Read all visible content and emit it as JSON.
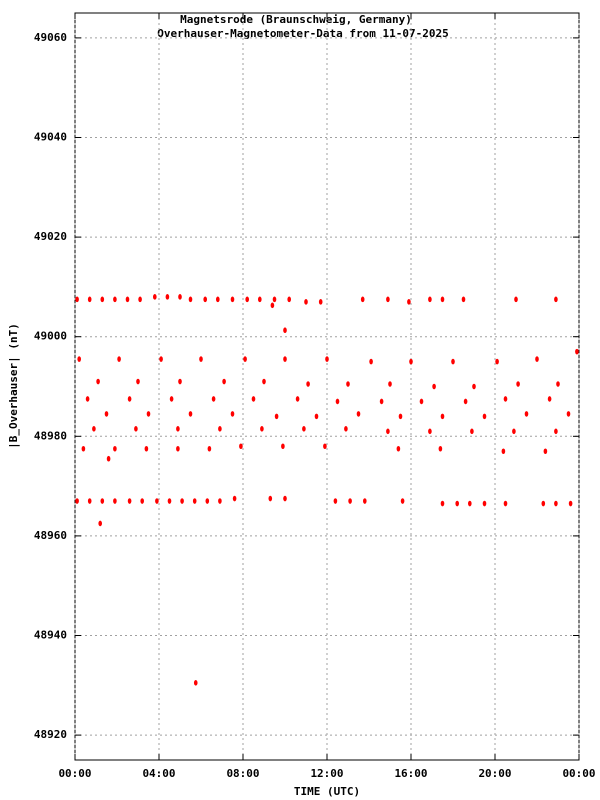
{
  "chart_data": {
    "type": "scatter",
    "title": "Magnetsrode (Braunschweig, Germany)",
    "subtitle": "Overhauser-Magnetometer-Data from 11-07-2025",
    "x_label": "TIME (UTC)",
    "y_label": "|B_Overhauser| (nT)",
    "color": "#ff0000",
    "grid": true,
    "xlim": [
      0,
      24
    ],
    "xticks": [
      {
        "value": 0,
        "label": "00:00"
      },
      {
        "value": 4,
        "label": "04:00"
      },
      {
        "value": 8,
        "label": "08:00"
      },
      {
        "value": 12,
        "label": "12:00"
      },
      {
        "value": 16,
        "label": "16:00"
      },
      {
        "value": 20,
        "label": "20:00"
      },
      {
        "value": 24,
        "label": "00:00"
      }
    ],
    "ylim": [
      48915,
      49065
    ],
    "yticks": [
      48920,
      48940,
      48960,
      48980,
      49000,
      49020,
      49040,
      49060
    ],
    "x": [
      0.1,
      0.7,
      1.3,
      1.9,
      2.5,
      3.1,
      3.8,
      4.4,
      5.0,
      5.5,
      6.2,
      6.8,
      7.5,
      8.2,
      8.8,
      9.5,
      10.2,
      11.0,
      11.7,
      13.7,
      14.9,
      15.9,
      16.9,
      17.5,
      18.5,
      21.0,
      22.9,
      0.1,
      0.7,
      1.3,
      1.9,
      2.6,
      3.2,
      3.9,
      4.5,
      5.1,
      5.7,
      6.3,
      6.9,
      7.6,
      9.3,
      10.0,
      12.4,
      13.1,
      13.8,
      15.6,
      17.5,
      18.2,
      18.8,
      19.5,
      20.5,
      22.3,
      22.9,
      23.6,
      0.2,
      2.1,
      4.1,
      6.0,
      8.1,
      10.0,
      12.0,
      14.1,
      16.0,
      18.0,
      20.1,
      22.0,
      1.1,
      3.0,
      5.0,
      7.1,
      9.0,
      11.1,
      13.0,
      15.0,
      17.1,
      19.0,
      21.1,
      23.0,
      0.6,
      2.6,
      4.6,
      6.6,
      8.5,
      10.6,
      12.5,
      14.6,
      16.5,
      18.6,
      20.5,
      22.6,
      1.5,
      3.5,
      5.5,
      7.5,
      9.6,
      11.5,
      13.5,
      15.5,
      17.5,
      19.5,
      21.5,
      23.5,
      0.9,
      2.9,
      4.9,
      6.9,
      8.9,
      10.9,
      12.9,
      14.9,
      16.9,
      18.9,
      20.9,
      22.9,
      0.4,
      1.9,
      3.4,
      4.9,
      6.4,
      7.9,
      9.9,
      11.9,
      15.4,
      17.4,
      20.4,
      22.4,
      1.2,
      5.75,
      10.0,
      9.4,
      1.6,
      23.9
    ],
    "values": [
      49007.5,
      49007.5,
      49007.5,
      49007.5,
      49007.5,
      49007.5,
      49008,
      49008,
      49008,
      49007.5,
      49007.5,
      49007.5,
      49007.5,
      49007.5,
      49007.5,
      49007.5,
      49007.5,
      49007,
      49007,
      49007.5,
      49007.5,
      49007,
      49007.5,
      49007.5,
      49007.5,
      49007.5,
      49007.5,
      48967,
      48967,
      48967,
      48967,
      48967,
      48967,
      48967,
      48967,
      48967,
      48967,
      48967,
      48967,
      48967.5,
      48967.5,
      48967.5,
      48967,
      48967,
      48967,
      48967,
      48966.5,
      48966.5,
      48966.5,
      48966.5,
      48966.5,
      48966.5,
      48966.5,
      48966.5,
      48995.5,
      48995.5,
      48995.5,
      48995.5,
      48995.5,
      48995.5,
      48995.5,
      48995,
      48995,
      48995,
      48995,
      48995.5,
      48991,
      48991,
      48991,
      48991,
      48991,
      48990.5,
      48990.5,
      48990.5,
      48990,
      48990,
      48990.5,
      48990.5,
      48987.5,
      48987.5,
      48987.5,
      48987.5,
      48987.5,
      48987.5,
      48987,
      48987,
      48987,
      48987,
      48987.5,
      48987.5,
      48984.5,
      48984.5,
      48984.5,
      48984.5,
      48984,
      48984,
      48984.5,
      48984,
      48984,
      48984,
      48984.5,
      48984.5,
      48981.5,
      48981.5,
      48981.5,
      48981.5,
      48981.5,
      48981.5,
      48981.5,
      48981,
      48981,
      48981,
      48981,
      48981,
      48977.5,
      48977.5,
      48977.5,
      48977.5,
      48977.5,
      48978,
      48978,
      48978,
      48977.5,
      48977.5,
      48977,
      48977,
      48962.5,
      48930.5,
      49001.3,
      49006.3,
      48975.5,
      48997
    ]
  }
}
